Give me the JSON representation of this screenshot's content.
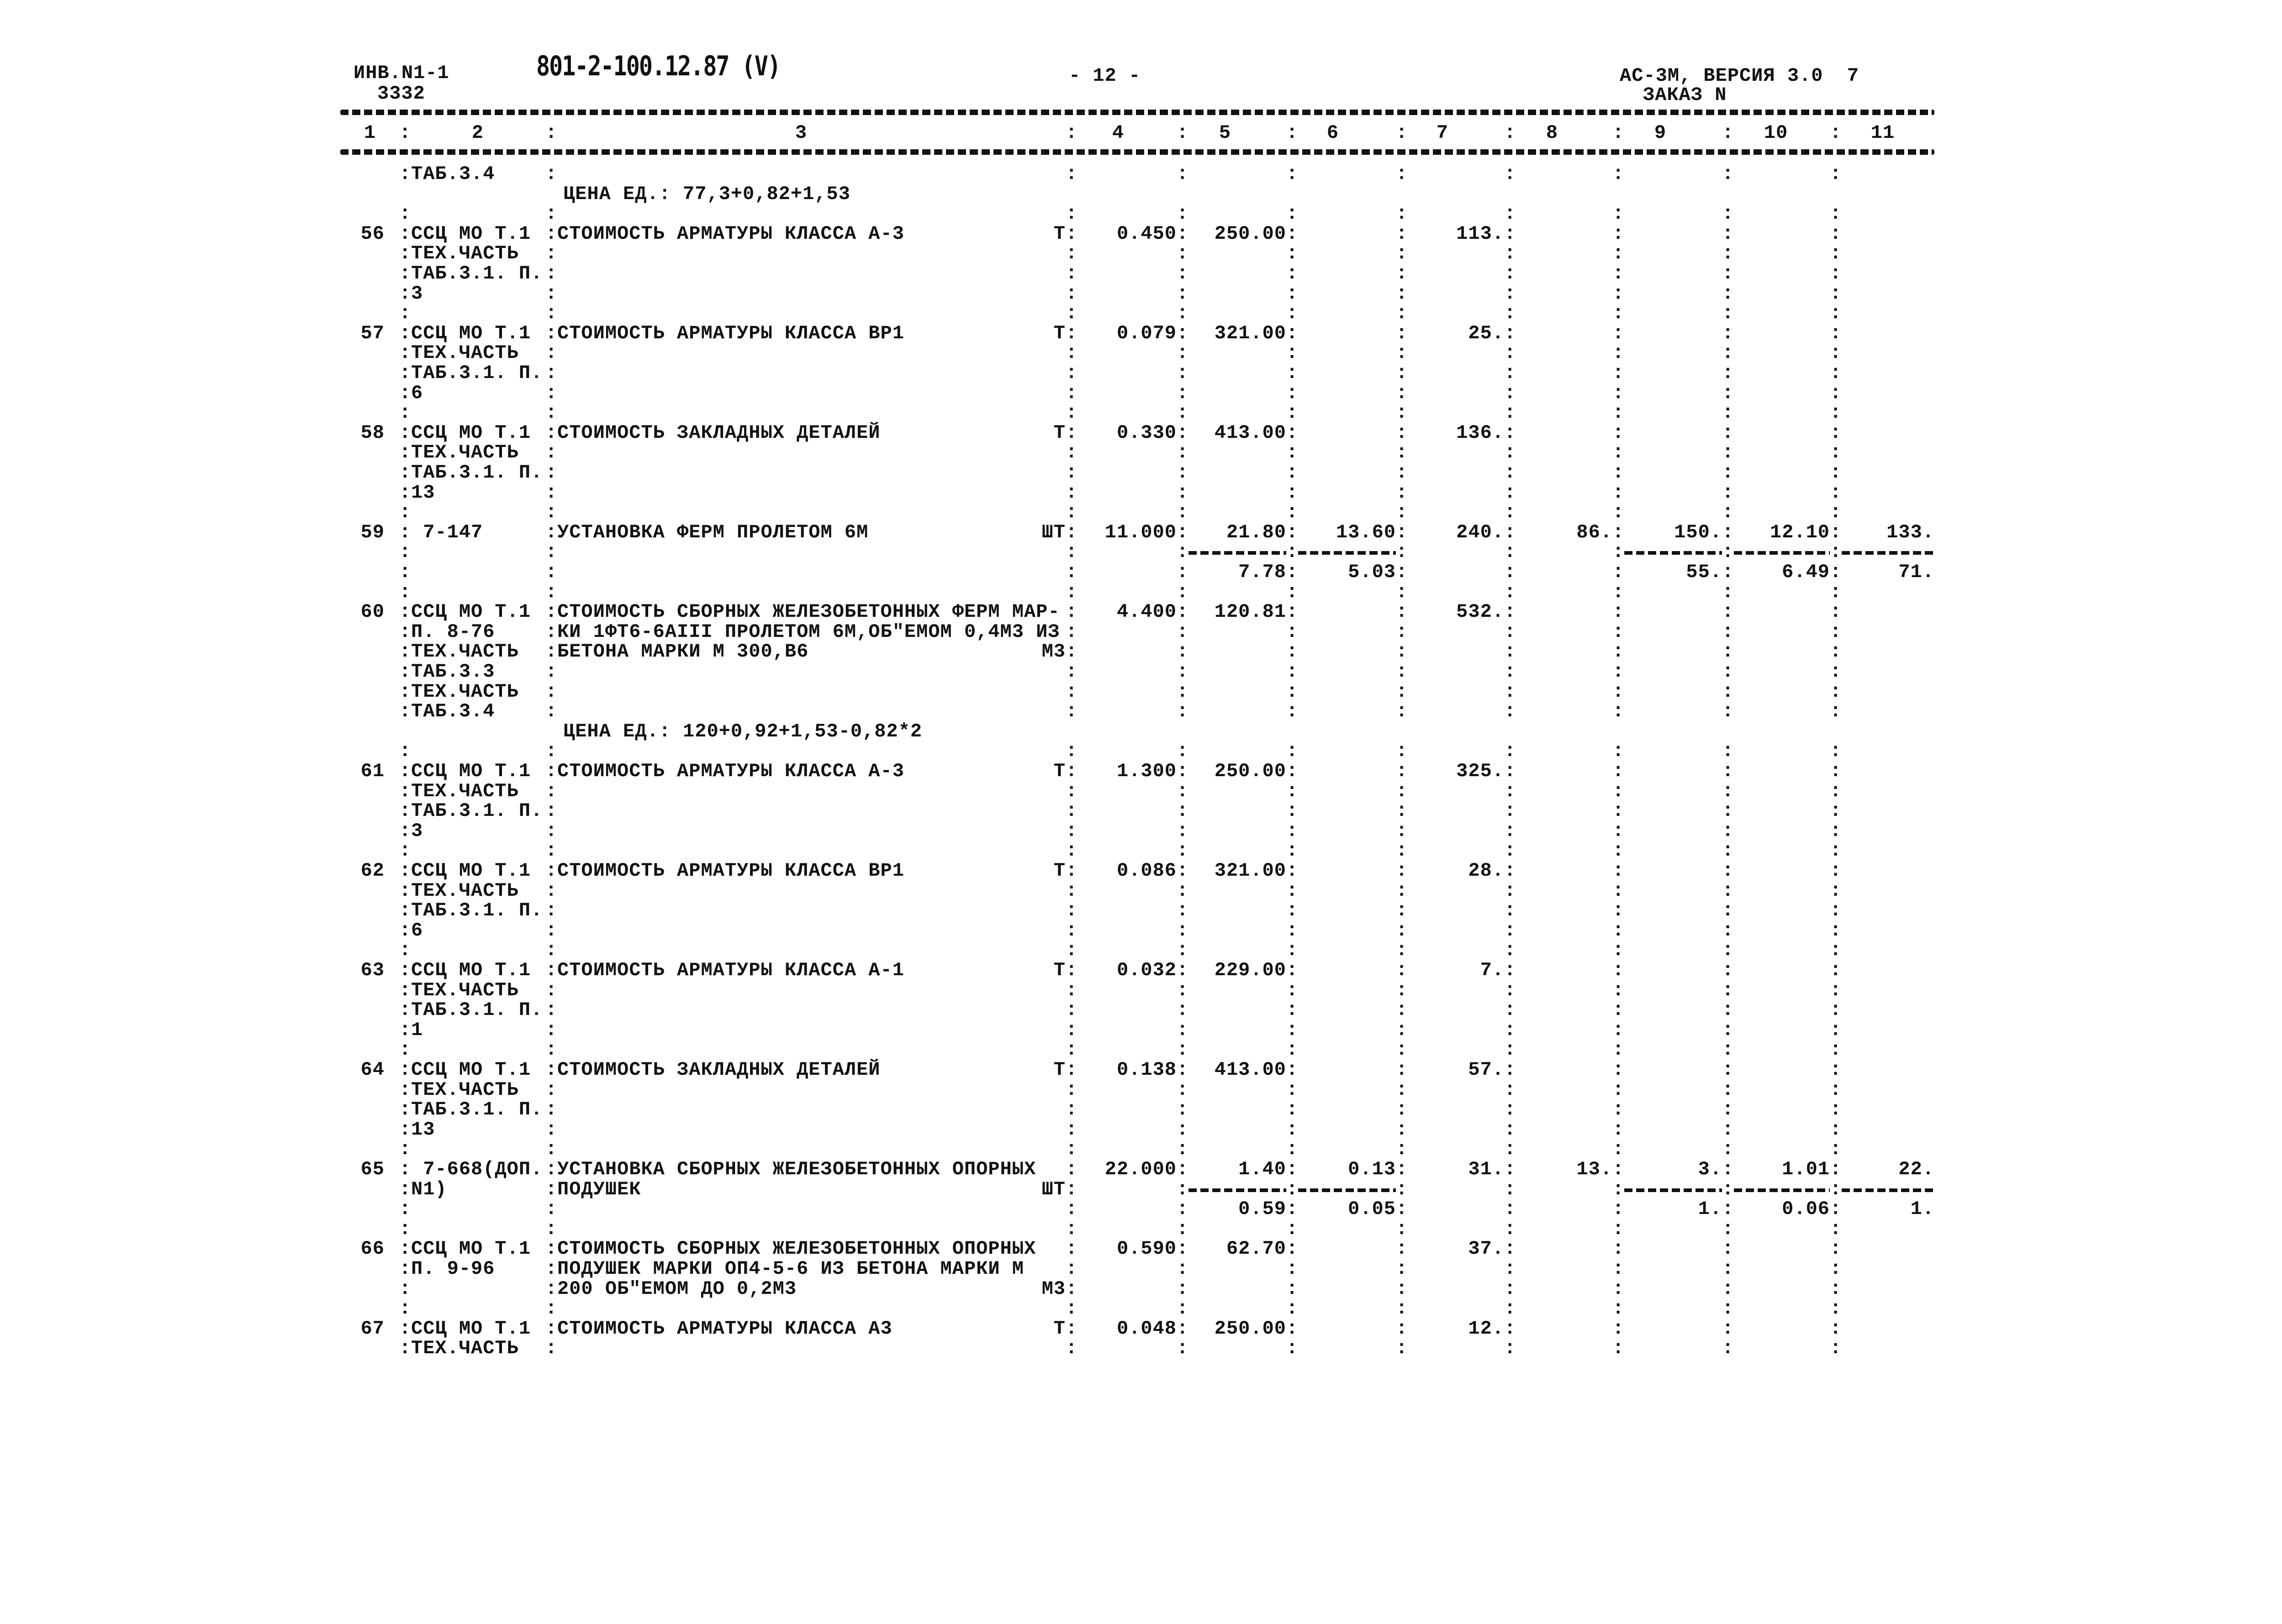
{
  "header": {
    "inv": "ИНВ.N1-1",
    "inv_no": "3332",
    "doc_code": "801-2-100.12.87 (V)",
    "page": "- 12 -",
    "program": "АС-3М, ВЕРСИЯ 3.0  7",
    "order": "ЗАКАЗ N"
  },
  "divider": ":",
  "column_numbers": [
    "1",
    "2",
    "3",
    "4",
    "5",
    "6",
    "7",
    "8",
    "9",
    "10",
    "11"
  ],
  "lines": [
    {
      "c2": "ТАБ.3.4"
    },
    {
      "note": "ЦЕНА ЕД.: 77,3+0,82+1,53"
    },
    {},
    {
      "n": "56",
      "c2": "ССЦ МО Т.1",
      "c3": "СТОИМОСТЬ АРМАТУРЫ КЛАССА А-3",
      "u": "Т",
      "v": [
        "0.450",
        "250.00",
        "",
        "113.",
        "",
        "",
        "",
        ""
      ]
    },
    {
      "c2": "ТЕХ.ЧАСТЬ"
    },
    {
      "c2": "ТАБ.3.1. П."
    },
    {
      "c2": "3"
    },
    {},
    {
      "n": "57",
      "c2": "ССЦ МО Т.1",
      "c3": "СТОИМОСТЬ АРМАТУРЫ КЛАССА ВР1",
      "u": "Т",
      "v": [
        "0.079",
        "321.00",
        "",
        "25.",
        "",
        "",
        "",
        ""
      ]
    },
    {
      "c2": "ТЕХ.ЧАСТЬ"
    },
    {
      "c2": "ТАБ.3.1. П."
    },
    {
      "c2": "6"
    },
    {},
    {
      "n": "58",
      "c2": "ССЦ МО Т.1",
      "c3": "СТОИМОСТЬ ЗАКЛАДНЫХ ДЕТАЛЕЙ",
      "u": "Т",
      "v": [
        "0.330",
        "413.00",
        "",
        "136.",
        "",
        "",
        "",
        ""
      ]
    },
    {
      "c2": "ТЕХ.ЧАСТЬ"
    },
    {
      "c2": "ТАБ.3.1. П."
    },
    {
      "c2": "13"
    },
    {},
    {
      "n": "59",
      "c2": " 7-147",
      "c3": "УСТАНОВКА ФЕРМ ПРОЛЕТОМ 6М",
      "u": "ШТ",
      "v": [
        "11.000",
        "21.80",
        "13.60",
        "240.",
        "86.",
        "150.",
        "12.10",
        "133."
      ]
    },
    {
      "dash": [
        5,
        6,
        9,
        10,
        11
      ]
    },
    {
      "v": [
        "",
        "7.78",
        "5.03",
        "",
        "",
        "55.",
        "6.49",
        "71."
      ]
    },
    {},
    {
      "n": "60",
      "c2": "ССЦ МО Т.1",
      "c3": "СТОИМОСТЬ СБОРНЫХ ЖЕЛЕЗОБЕТОННЫХ ФЕРМ МАР-",
      "v": [
        "4.400",
        "120.81",
        "",
        "532.",
        "",
        "",
        "",
        ""
      ]
    },
    {
      "c2": "П. 8-76",
      "c3": "КИ 1ФТ6-6АIII ПРОЛЕТОМ 6М,ОБ\"ЕМОМ 0,4М3 ИЗ"
    },
    {
      "c2": "ТЕХ.ЧАСТЬ",
      "c3": "БЕТОНА МАРКИ М 300,В6",
      "u": "М3"
    },
    {
      "c2": "ТАБ.3.3"
    },
    {
      "c2": "ТЕХ.ЧАСТЬ"
    },
    {
      "c2": "ТАБ.3.4"
    },
    {
      "note": "ЦЕНА ЕД.: 120+0,92+1,53-0,82*2"
    },
    {},
    {
      "n": "61",
      "c2": "ССЦ МО Т.1",
      "c3": "СТОИМОСТЬ АРМАТУРЫ КЛАССА А-3",
      "u": "Т",
      "v": [
        "1.300",
        "250.00",
        "",
        "325.",
        "",
        "",
        "",
        ""
      ]
    },
    {
      "c2": "ТЕХ.ЧАСТЬ"
    },
    {
      "c2": "ТАБ.3.1. П."
    },
    {
      "c2": "3"
    },
    {},
    {
      "n": "62",
      "c2": "ССЦ МО Т.1",
      "c3": "СТОИМОСТЬ АРМАТУРЫ КЛАССА ВР1",
      "u": "Т",
      "v": [
        "0.086",
        "321.00",
        "",
        "28.",
        "",
        "",
        "",
        ""
      ]
    },
    {
      "c2": "ТЕХ.ЧАСТЬ"
    },
    {
      "c2": "ТАБ.3.1. П."
    },
    {
      "c2": "6"
    },
    {},
    {
      "n": "63",
      "c2": "ССЦ МО Т.1",
      "c3": "СТОИМОСТЬ АРМАТУРЫ КЛАССА А-1",
      "u": "Т",
      "v": [
        "0.032",
        "229.00",
        "",
        "7.",
        "",
        "",
        "",
        ""
      ]
    },
    {
      "c2": "ТЕХ.ЧАСТЬ"
    },
    {
      "c2": "ТАБ.3.1. П."
    },
    {
      "c2": "1"
    },
    {},
    {
      "n": "64",
      "c2": "ССЦ МО Т.1",
      "c3": "СТОИМОСТЬ ЗАКЛАДНЫХ ДЕТАЛЕЙ",
      "u": "Т",
      "v": [
        "0.138",
        "413.00",
        "",
        "57.",
        "",
        "",
        "",
        ""
      ]
    },
    {
      "c2": "ТЕХ.ЧАСТЬ"
    },
    {
      "c2": "ТАБ.3.1. П."
    },
    {
      "c2": "13"
    },
    {},
    {
      "n": "65",
      "c2": " 7-668(ДОП.",
      "c3": "УСТАНОВКА СБОРНЫХ ЖЕЛЕЗОБЕТОННЫХ ОПОРНЫХ",
      "v": [
        "22.000",
        "1.40",
        "0.13",
        "31.",
        "13.",
        "3.",
        "1.01",
        "22."
      ]
    },
    {
      "c2": "N1)",
      "c3": "ПОДУШЕК",
      "u": "ШТ",
      "dash": [
        5,
        6,
        9,
        10,
        11
      ]
    },
    {
      "v": [
        "",
        "0.59",
        "0.05",
        "",
        "",
        "1.",
        "0.06",
        "1."
      ]
    },
    {},
    {
      "n": "66",
      "c2": "ССЦ МО Т.1",
      "c3": "СТОИМОСТЬ СБОРНЫХ ЖЕЛЕЗОБЕТОННЫХ ОПОРНЫХ",
      "v": [
        "0.590",
        "62.70",
        "",
        "37.",
        "",
        "",
        "",
        ""
      ]
    },
    {
      "c2": "П. 9-96",
      "c3": "ПОДУШЕК МАРКИ ОП4-5-6 ИЗ БЕТОНА МАРКИ М"
    },
    {
      "c3": "200 ОБ\"ЕМОМ ДО 0,2М3",
      "u": "М3"
    },
    {},
    {
      "n": "67",
      "c2": "ССЦ МО Т.1",
      "c3": "СТОИМОСТЬ АРМАТУРЫ КЛАССА А3",
      "u": "Т",
      "v": [
        "0.048",
        "250.00",
        "",
        "12.",
        "",
        "",
        "",
        ""
      ]
    },
    {
      "c2": "ТЕХ.ЧАСТЬ"
    }
  ]
}
